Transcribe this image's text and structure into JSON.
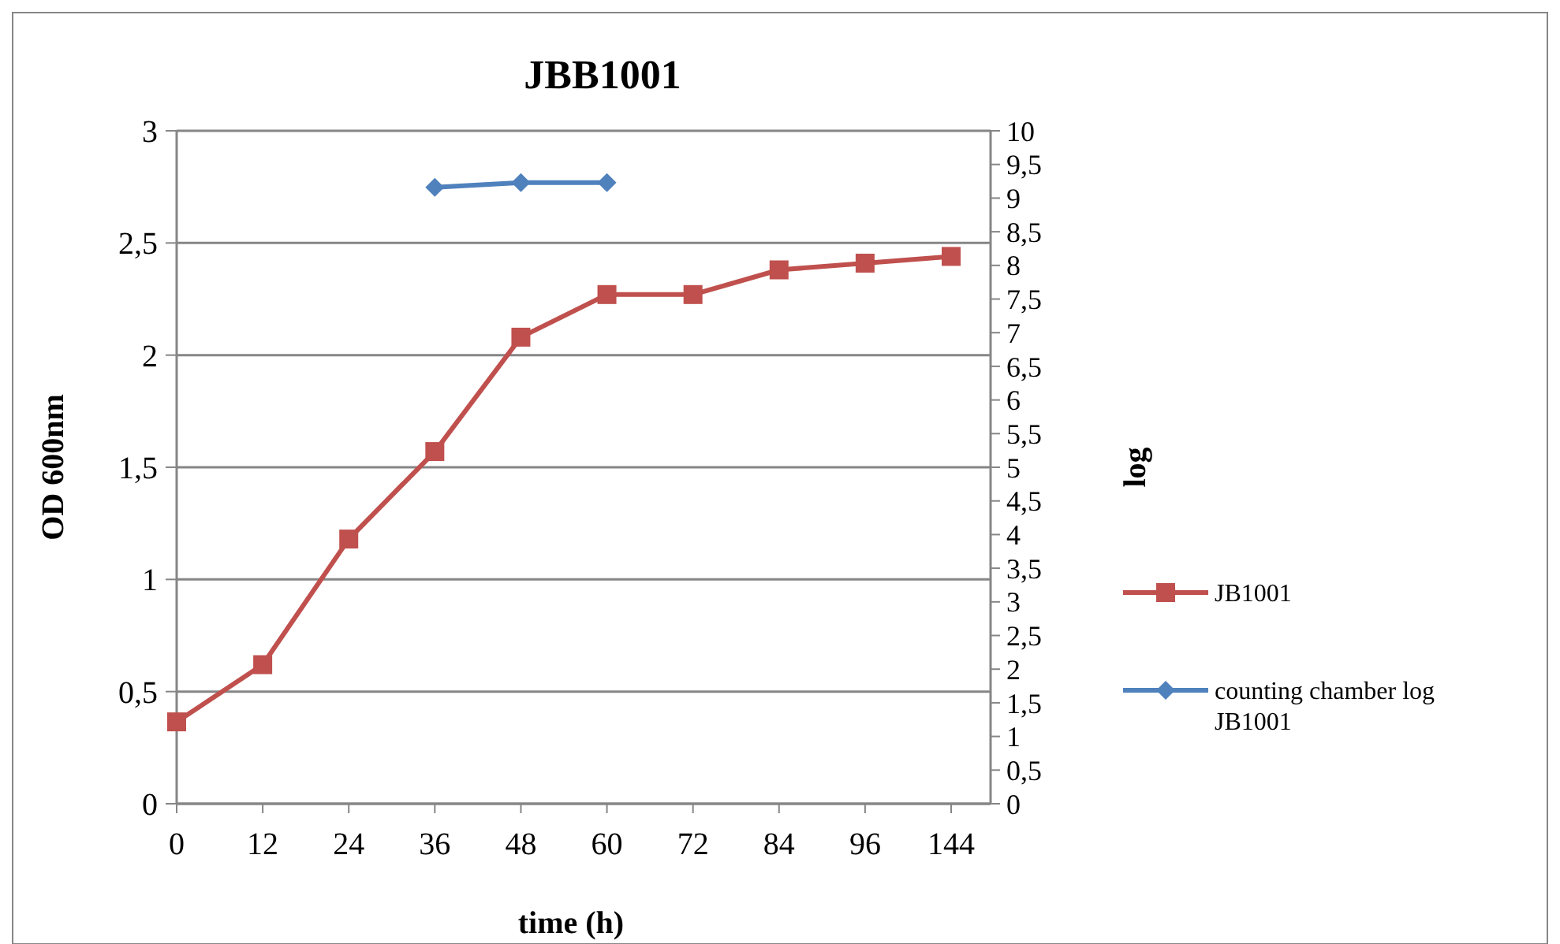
{
  "chart_data": {
    "type": "line",
    "title": "JBB1001",
    "xlabel": "time (h)",
    "ylabel": "OD 600nm",
    "y2label": "log",
    "categories": [
      "0",
      "12",
      "24",
      "36",
      "48",
      "60",
      "72",
      "84",
      "96",
      "144"
    ],
    "series": [
      {
        "name": "JB1001",
        "color": "#c0504d",
        "marker": "square",
        "values": [
          0.365,
          0.62,
          1.18,
          1.57,
          2.08,
          2.27,
          2.27,
          2.38,
          2.41,
          2.44
        ]
      },
      {
        "name": "counting chamber log JB1001",
        "color": "#4f81bd",
        "marker": "diamond",
        "axis": "y2",
        "values": [
          null,
          null,
          null,
          9.16,
          9.23,
          9.23,
          null,
          null,
          null,
          null
        ]
      }
    ],
    "ylim": [
      0,
      3
    ],
    "yticks": [
      0,
      {
        "value": 0.5,
        "label": "0,5"
      },
      1,
      {
        "value": 1.5,
        "label": "1,5"
      },
      2,
      {
        "value": 2.5,
        "label": "2,5"
      },
      3
    ],
    "y2lim": [
      0,
      10
    ],
    "y2ticks": [
      0,
      {
        "value": 0.5,
        "label": "0,5"
      },
      1,
      {
        "value": 1.5,
        "label": "1,5"
      },
      2,
      {
        "value": 2.5,
        "label": "2,5"
      },
      3,
      {
        "value": 3.5,
        "label": "3,5"
      },
      4,
      {
        "value": 4.5,
        "label": "4,5"
      },
      5,
      {
        "value": 5.5,
        "label": "5,5"
      },
      6,
      {
        "value": 6.5,
        "label": "6,5"
      },
      7,
      {
        "value": 7.5,
        "label": "7,5"
      },
      8,
      {
        "value": 8.5,
        "label": "8,5"
      },
      9,
      {
        "value": 9.5,
        "label": "9,5"
      },
      10
    ],
    "grid": "y",
    "legend": "right"
  }
}
